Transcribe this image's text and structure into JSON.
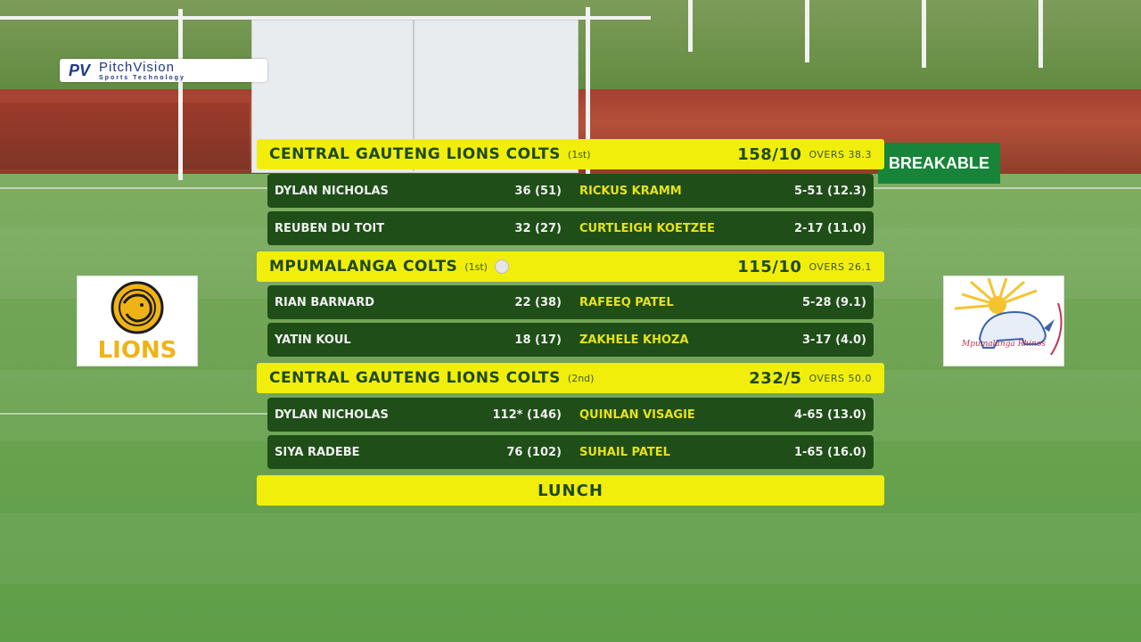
{
  "branding": {
    "broadcaster_name": "PitchVision",
    "broadcaster_tagline": "Sports Technology",
    "broadcaster_mark": "PV",
    "ad_text": "BREAKABLE"
  },
  "teams": {
    "left_logo_text": "LIONS",
    "right_logo_text": "Mpumalanga Rhinos"
  },
  "scoreboard": {
    "innings": [
      {
        "team": "CENTRAL GAUTENG LIONS COLTS",
        "innings_no": "(1st)",
        "score": "158/10",
        "overs": "OVERS 38.3",
        "rows": [
          {
            "batter": "DYLAN NICHOLAS",
            "bat": "36 (51)",
            "bowler": "RICKUS KRAMM",
            "bowl": "5-51 (12.3)"
          },
          {
            "batter": "REUBEN DU TOIT",
            "bat": "32 (27)",
            "bowler": "CURTLEIGH KOETZEE",
            "bowl": "2-17 (11.0)"
          }
        ]
      },
      {
        "team": "MPUMALANGA COLTS",
        "innings_no": "(1st)",
        "score": "115/10",
        "overs": "OVERS 26.1",
        "rows": [
          {
            "batter": "RIAN BARNARD",
            "bat": "22 (38)",
            "bowler": "RAFEEQ PATEL",
            "bowl": "5-28 (9.1)"
          },
          {
            "batter": "YATIN KOUL",
            "bat": "18 (17)",
            "bowler": "ZAKHELE KHOZA",
            "bowl": "3-17 (4.0)"
          }
        ]
      },
      {
        "team": "CENTRAL GAUTENG LIONS COLTS",
        "innings_no": "(2nd)",
        "score": "232/5",
        "overs": "OVERS 50.0",
        "rows": [
          {
            "batter": "DYLAN NICHOLAS",
            "bat": "112* (146)",
            "bowler": "QUINLAN VISAGIE",
            "bowl": "4-65 (13.0)"
          },
          {
            "batter": "SIYA RADEBE",
            "bat": "76 (102)",
            "bowler": "SUHAIL PATEL",
            "bowl": "1-65 (16.0)"
          }
        ]
      }
    ],
    "status": "LUNCH"
  },
  "colors": {
    "bar_yellow": "#f2ee0b",
    "row_green": "#1f4e18",
    "bowler_yellow": "#e6e21a",
    "lions_gold": "#f0b316",
    "rhino_red": "#c0364e"
  }
}
